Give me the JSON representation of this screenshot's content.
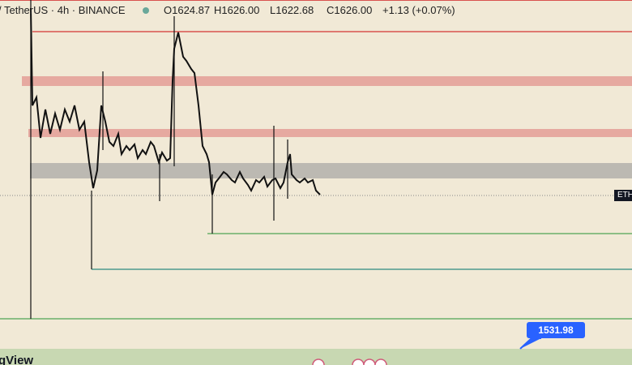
{
  "header": {
    "symbol": "/ TetherUS · 4h · BINANCE",
    "open": "O1624.87",
    "high": "H1626.00",
    "low": "L1622.68",
    "close": "C1626.00",
    "change": "+1.13 (+0.07%)"
  },
  "price_tag": "ETH",
  "price_label": "1531.98",
  "logo": "gView"
}
